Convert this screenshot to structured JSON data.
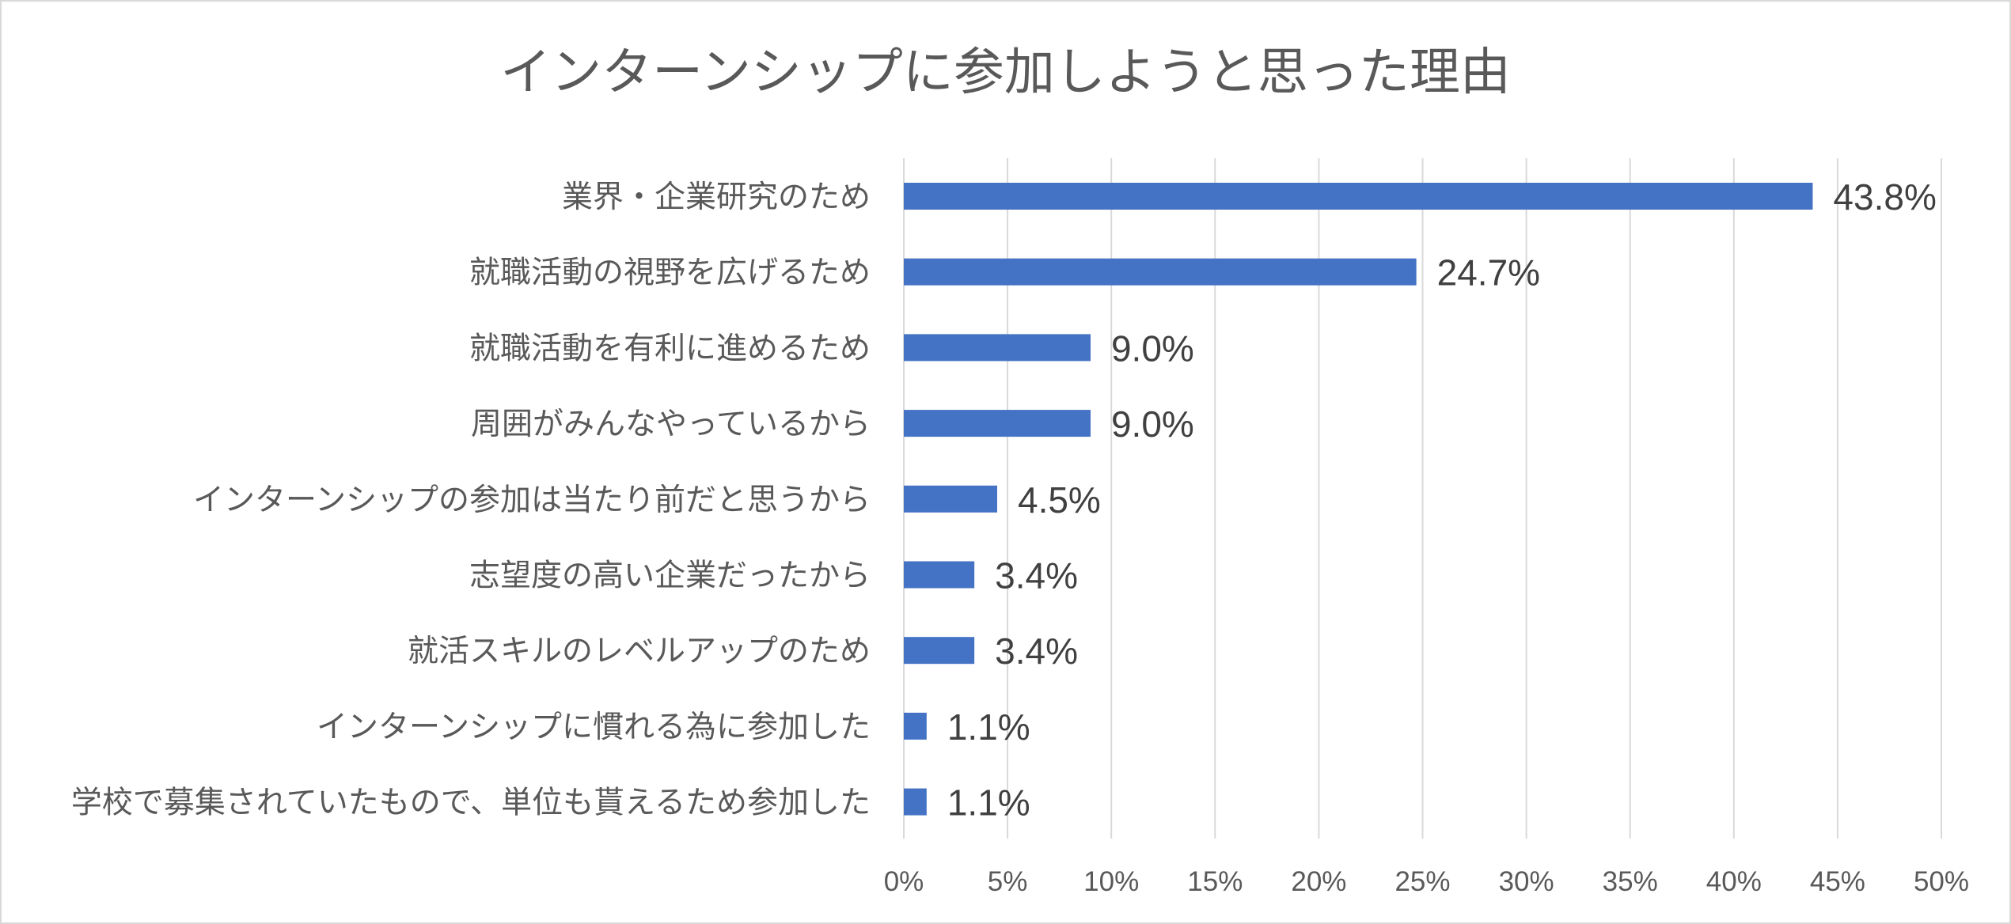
{
  "chart_data": {
    "type": "bar",
    "orientation": "horizontal",
    "title": "インターンシップに参加しようと思った理由",
    "categories": [
      "業界・企業研究のため",
      "就職活動の視野を広げるため",
      "就職活動を有利に進めるため",
      "周囲がみんなやっているから",
      "インターンシップの参加は当たり前だと思うから",
      "志望度の高い企業だったから",
      "就活スキルのレベルアップのため",
      "インターンシップに慣れる為に参加した",
      "学校で募集されていたもので、単位も貰えるため参加した"
    ],
    "values": [
      43.8,
      24.7,
      9.0,
      9.0,
      4.5,
      3.4,
      3.4,
      1.1,
      1.1
    ],
    "data_labels": [
      "43.8%",
      "24.7%",
      "9.0%",
      "9.0%",
      "4.5%",
      "3.4%",
      "3.4%",
      "1.1%",
      "1.1%"
    ],
    "xlim": [
      0,
      50
    ],
    "x_ticks": [
      0,
      5,
      10,
      15,
      20,
      25,
      30,
      35,
      40,
      45,
      50
    ],
    "x_tick_labels": [
      "0%",
      "5%",
      "10%",
      "15%",
      "20%",
      "25%",
      "30%",
      "35%",
      "40%",
      "45%",
      "50%"
    ],
    "xlabel": "",
    "ylabel": "",
    "grid": true,
    "legend": "none",
    "bar_color": "#4472c4",
    "grid_color": "#d9d9d9"
  }
}
